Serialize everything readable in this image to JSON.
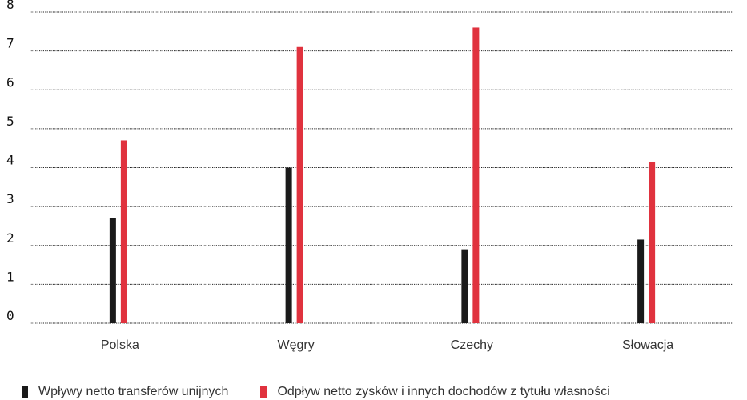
{
  "chart_data": {
    "type": "bar",
    "title": "",
    "xlabel": "",
    "ylabel": "",
    "ylim": [
      0,
      8
    ],
    "yticks": [
      "0",
      "1",
      "2",
      "3",
      "4",
      "5",
      "6",
      "7",
      "8"
    ],
    "grid": true,
    "legend_position": "bottom",
    "categories": [
      "Polska",
      "Węgry",
      "Czechy",
      "Słowacja"
    ],
    "series": [
      {
        "name": "Wpływy netto transferów unijnych",
        "color": "#1a1a1a",
        "values": [
          2.7,
          4.0,
          1.9,
          2.15
        ]
      },
      {
        "name": "Odpływ netto zysków i innych dochodów z tytułu własności",
        "color": "#e0323e",
        "values": [
          4.7,
          7.1,
          7.6,
          4.15
        ]
      }
    ]
  }
}
